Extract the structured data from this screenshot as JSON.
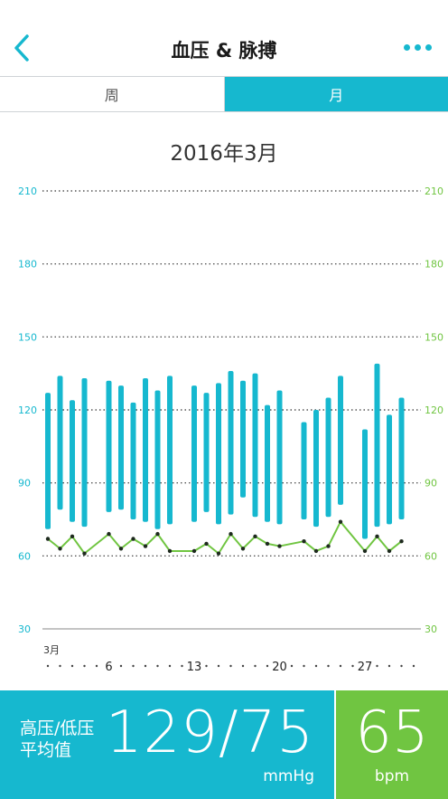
{
  "header": {
    "title": "血压 & 脉搏"
  },
  "tabs": [
    {
      "label": "周",
      "selected": false
    },
    {
      "label": "月",
      "selected": true
    }
  ],
  "period_title": "2016年3月",
  "chart_data": {
    "type": "bar",
    "title": "",
    "y_range": [
      30,
      210
    ],
    "y_ticks": [
      210,
      180,
      150,
      120,
      90,
      60,
      30
    ],
    "right_ticks": [
      210,
      180,
      150,
      120,
      90,
      60,
      30
    ],
    "month_label": "3月",
    "x_day_labels": [
      "6",
      "13",
      "20",
      "27"
    ],
    "days_in_month": 31,
    "series": [
      {
        "name": "高压/低压",
        "type": "range-bar",
        "color": "#16b8cf",
        "days": [
          1,
          2,
          3,
          4,
          6,
          7,
          8,
          9,
          10,
          11,
          13,
          14,
          15,
          16,
          17,
          18,
          19,
          20,
          22,
          23,
          24,
          25,
          27,
          28,
          29,
          30
        ],
        "high": [
          127,
          134,
          124,
          133,
          132,
          130,
          123,
          133,
          128,
          134,
          130,
          127,
          131,
          136,
          132,
          135,
          122,
          128,
          115,
          120,
          125,
          134,
          112,
          139,
          118,
          125
        ],
        "low": [
          71,
          79,
          74,
          72,
          78,
          79,
          75,
          74,
          71,
          73,
          74,
          78,
          73,
          77,
          84,
          76,
          74,
          73,
          75,
          72,
          76,
          81,
          67,
          72,
          73,
          75
        ]
      },
      {
        "name": "脉搏",
        "type": "line",
        "color": "#70c541",
        "days": [
          1,
          2,
          3,
          4,
          6,
          7,
          8,
          9,
          10,
          11,
          13,
          14,
          15,
          16,
          17,
          18,
          19,
          20,
          22,
          23,
          24,
          25,
          27,
          28,
          29,
          30
        ],
        "values": [
          67,
          63,
          68,
          61,
          69,
          63,
          67,
          64,
          69,
          62,
          62,
          65,
          61,
          69,
          63,
          68,
          65,
          64,
          66,
          62,
          64,
          74,
          62,
          68,
          62,
          66
        ]
      }
    ],
    "colors": {
      "bp": "#16b8cf",
      "pulse": "#70c541",
      "left_axis": "#16b8cf",
      "right_axis": "#70c541"
    }
  },
  "summary": {
    "label_line1": "高压/低压",
    "label_line2": "平均值",
    "bp_value": "129/75",
    "bp_unit": "mmHg",
    "pulse_value": "65",
    "pulse_unit": "bpm"
  },
  "icons": {
    "back": "chevron-left-icon",
    "more": "more-dots-icon"
  }
}
